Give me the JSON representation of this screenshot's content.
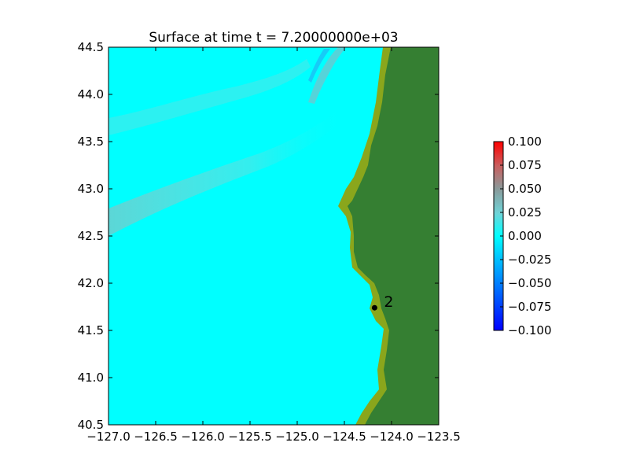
{
  "chart_data": {
    "type": "heatmap",
    "title": "Surface at time t = 7.20000000e+03",
    "xlabel": "",
    "ylabel": "",
    "xlim": [
      -127.0,
      -123.5
    ],
    "ylim": [
      40.5,
      44.5
    ],
    "x_tick_labels": [
      "−127.0",
      "−126.5",
      "−126.0",
      "−125.5",
      "−125.0",
      "−124.5",
      "−124.0",
      "−123.5"
    ],
    "x_ticks": [
      -127.0,
      -126.5,
      -126.0,
      -125.5,
      -125.0,
      -124.5,
      -124.0,
      -123.5
    ],
    "y_tick_labels": [
      "40.5",
      "41.0",
      "41.5",
      "42.0",
      "42.5",
      "43.0",
      "43.5",
      "44.0",
      "44.5"
    ],
    "y_ticks": [
      40.5,
      41.0,
      41.5,
      42.0,
      42.5,
      43.0,
      43.5,
      44.0,
      44.5
    ],
    "colorbar": {
      "range": [
        -0.1,
        0.1
      ],
      "ticks": [
        0.1,
        0.075,
        0.05,
        0.025,
        0.0,
        -0.025,
        -0.05,
        -0.075,
        -0.1
      ],
      "tick_labels": [
        "0.100",
        "0.075",
        "0.050",
        "0.025",
        "0.000",
        "−0.025",
        "−0.050",
        "−0.075",
        "−0.100"
      ],
      "colors": [
        "#0000ff",
        "#00ffff",
        "#ff0000"
      ]
    },
    "gauges": [
      {
        "label": "2",
        "x": -124.18,
        "y": 41.74
      }
    ],
    "colors": {
      "water": "#00ffff",
      "land": "#357f32",
      "shore": "#8aa61c"
    }
  }
}
